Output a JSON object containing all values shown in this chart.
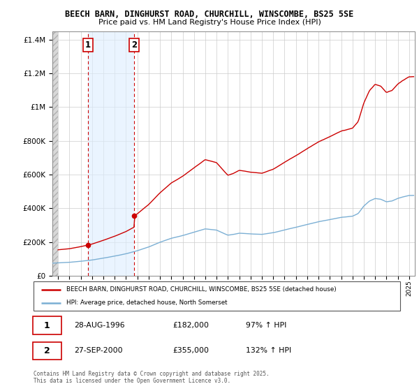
{
  "title": "BEECH BARN, DINGHURST ROAD, CHURCHILL, WINSCOMBE, BS25 5SE",
  "subtitle": "Price paid vs. HM Land Registry's House Price Index (HPI)",
  "legend_label1": "BEECH BARN, DINGHURST ROAD, CHURCHILL, WINSCOMBE, BS25 5SE (detached house)",
  "legend_label2": "HPI: Average price, detached house, North Somerset",
  "sale1_date_str": "28-AUG-1996",
  "sale1_price_str": "£182,000",
  "sale1_hpi_str": "97% ↑ HPI",
  "sale2_date_str": "27-SEP-2000",
  "sale2_price_str": "£355,000",
  "sale2_hpi_str": "132% ↑ HPI",
  "footnote": "Contains HM Land Registry data © Crown copyright and database right 2025.\nThis data is licensed under the Open Government Licence v3.0.",
  "sale1_x": 1996.65,
  "sale1_y": 182000,
  "sale2_x": 2000.73,
  "sale2_y": 355000,
  "hpi_color": "#7bafd4",
  "property_color": "#cc0000",
  "hatch_color": "#c8c8c8",
  "shade_color": "#ddeeff",
  "xlim_left": 1993.5,
  "xlim_right": 2025.5,
  "ylim_bottom": 0,
  "ylim_top": 1450000,
  "yticks": [
    0,
    200000,
    400000,
    600000,
    800000,
    1000000,
    1200000,
    1400000
  ]
}
